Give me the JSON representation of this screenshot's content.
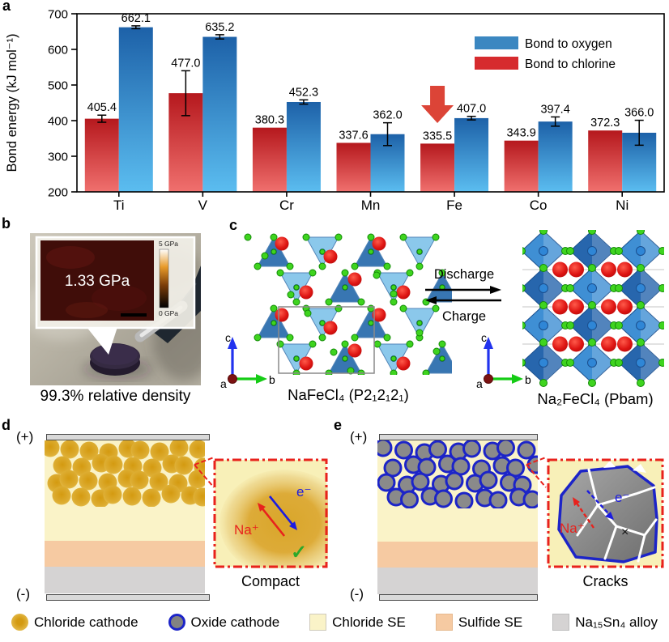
{
  "figure": {
    "panel_labels": {
      "a": "a",
      "b": "b",
      "c": "c",
      "d": "d",
      "e": "e"
    }
  },
  "chart_data": {
    "type": "bar",
    "title": "",
    "ylabel": "Bond energy (kJ mol⁻¹)",
    "categories": [
      "Ti",
      "V",
      "Cr",
      "Mn",
      "Fe",
      "Co",
      "Ni"
    ],
    "series": [
      {
        "name": "Bond to chlorine",
        "position": "left",
        "legend_color": "#d62b2e",
        "bar_color_top": "#b5181d",
        "bar_color_bottom": "#f0706e",
        "values": [
          405.4,
          477.0,
          380.3,
          337.6,
          335.5,
          343.9,
          372.3
        ],
        "errors": [
          10,
          63,
          0,
          0,
          0,
          0,
          0
        ]
      },
      {
        "name": "Bond to oxygen",
        "position": "right",
        "legend_color": "#3b87c1",
        "bar_color_top": "#1d61a8",
        "bar_color_bottom": "#5bbdf0",
        "values": [
          662.1,
          635.2,
          452.3,
          362.0,
          407.0,
          397.4,
          366.0
        ],
        "errors": [
          4,
          6,
          6,
          32,
          5,
          13,
          35
        ]
      }
    ],
    "legend_order": [
      "Bond to oxygen",
      "Bond to chlorine"
    ],
    "ylim": [
      200,
      700
    ],
    "yticks": [
      200,
      300,
      400,
      500,
      600,
      700
    ],
    "grid": false,
    "legend_position": "upper right",
    "annotation": {
      "shape": "down-arrow",
      "category": "Fe",
      "series": "Bond to chlorine",
      "color": "#dc4437"
    }
  },
  "panel_b": {
    "inset_value": "1.33 GPa",
    "scale_max": "5 GPa",
    "scale_min": "0 GPa",
    "caption": "99.3% relative density"
  },
  "panel_c": {
    "left_label": "NaFeCl₄ (P2₁2₁2₁)",
    "right_label": "Na₂FeCl₄ (Pbam)",
    "forward": "Discharge",
    "backward": "Charge",
    "axes": {
      "vertical": "c",
      "horizontal": "b",
      "normal": "a"
    }
  },
  "panel_d": {
    "positive": "(+)",
    "negative": "(-)",
    "ion": "Na⁺",
    "electron": "e⁻",
    "check_mark": "✓",
    "caption": "Compact"
  },
  "panel_e": {
    "positive": "(+)",
    "negative": "(-)",
    "ion": "Na⁺",
    "electron": "e⁻",
    "blocked_mark": "×",
    "caption": "Cracks"
  },
  "legend": {
    "items": [
      {
        "label": "Chloride cathode",
        "swatch": "chloride-cathode"
      },
      {
        "label": "Oxide cathode",
        "swatch": "oxide-cathode"
      },
      {
        "label": "Chloride SE",
        "swatch": "chloride-se"
      },
      {
        "label": "Sulfide SE",
        "swatch": "sulfide-se"
      },
      {
        "label": "Na₁₅Sn₄ alloy",
        "swatch": "alloy"
      }
    ]
  },
  "colors": {
    "bar_oxygen": "#3b87c1",
    "bar_chlorine": "#d62b2e",
    "fe_arrow": "#dc4437",
    "chloride_particle": "#d9a21b",
    "oxide_particle_fill": "#858585",
    "oxide_particle_border": "#1c24c8",
    "chloride_se": "#faf3c8",
    "sulfide_se": "#f6caa2",
    "alloy": "#d5d3d3",
    "electrode": "#d9d9d9",
    "ion_label": "#e8221d",
    "electron_label": "#1c1ce0",
    "check": "#2aa82a",
    "inset_border": "#e8221c"
  }
}
